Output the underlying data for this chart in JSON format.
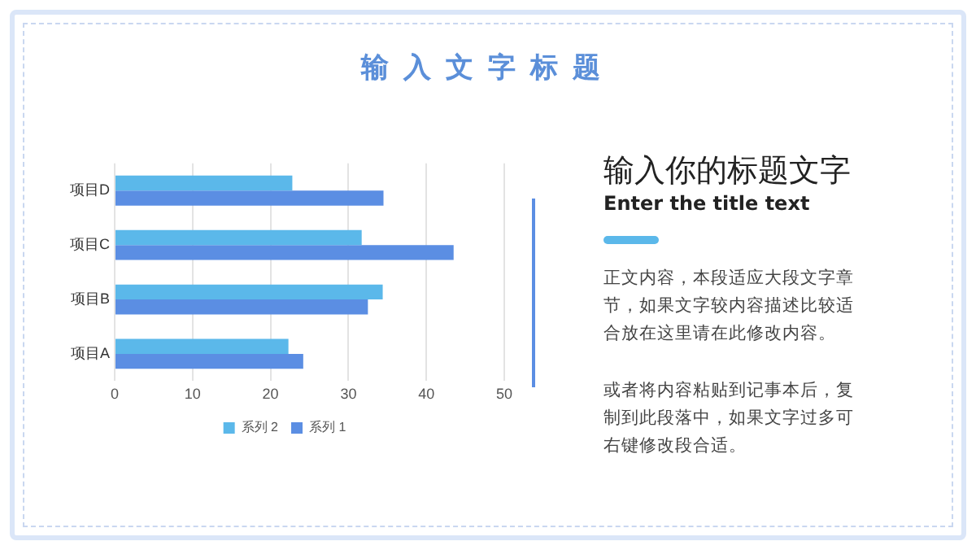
{
  "chart_data": {
    "type": "bar",
    "orientation": "horizontal",
    "title": "输入文字标题",
    "categories": [
      "项目D",
      "项目C",
      "项目B",
      "项目A"
    ],
    "series": [
      {
        "name": "系列 2",
        "color": "#5bb8ea",
        "values": [
          22.8,
          31.7,
          34.4,
          22.3
        ]
      },
      {
        "name": "系列 1",
        "color": "#5b8ee3",
        "values": [
          34.5,
          43.5,
          32.5,
          24.2
        ]
      }
    ],
    "xlim": [
      0,
      50
    ],
    "xticks": [
      0,
      10,
      20,
      30,
      40,
      50
    ],
    "grid": "x",
    "legend": "bottom",
    "annotations": [
      "输入你的标题文字",
      "Enter the title text",
      "正文内容，本段适应大段文字章节，如果文字较内容描述比较适合放在这里请在此修改内容。",
      "或者将内容粘贴到记事本后，复制到此段落中，如果文字过多可右键修改段合适。"
    ]
  }
}
